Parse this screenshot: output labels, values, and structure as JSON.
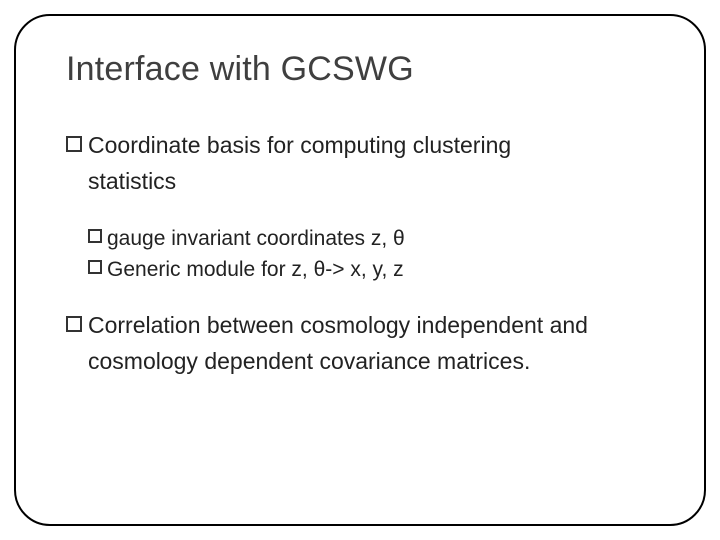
{
  "title": "Interface with GCSWG",
  "item1_line1": "Coordinate basis for computing clustering",
  "item1_line2": "statistics",
  "item1_sub1": "gauge invariant coordinates z, θ",
  "item1_sub2": "Generic module for z, θ-> x, y, z",
  "item2_line1": "Correlation between cosmology independent and",
  "item2_line2": "cosmology dependent covariance matrices.",
  "colors": {
    "title_color": "#3f3f3f",
    "text_color": "#222222",
    "border_color": "#000000",
    "bullet_color": "#333333",
    "background": "#ffffff"
  },
  "fonts": {
    "title_size": 34,
    "l1_size": 23,
    "l2_size": 21,
    "family": "Arial"
  },
  "layout": {
    "slide_border_radius": 36,
    "slide_padding": [
      34,
      50,
      30,
      50
    ]
  }
}
